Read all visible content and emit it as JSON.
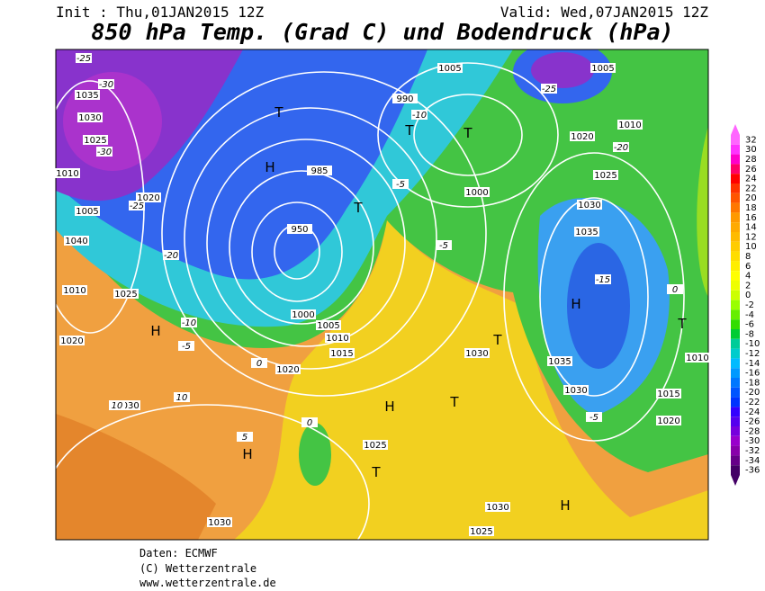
{
  "header": {
    "init": "Init : Thu,01JAN2015 12Z",
    "valid": "Valid: Wed,07JAN2015 12Z",
    "title": "850 hPa Temp. (Grad C) und Bodendruck (hPa)"
  },
  "colorbar": {
    "values": [
      32,
      30,
      28,
      26,
      24,
      22,
      20,
      18,
      16,
      14,
      12,
      10,
      8,
      6,
      4,
      2,
      0,
      -2,
      -4,
      -6,
      -8,
      -10,
      -12,
      -14,
      -16,
      -18,
      -20,
      -22,
      -24,
      -26,
      -28,
      -30,
      -32,
      -34,
      -36
    ],
    "colors": [
      "#ff66ff",
      "#ff33ff",
      "#ff00cc",
      "#ff0066",
      "#ff0000",
      "#ff3300",
      "#ff5500",
      "#ff7700",
      "#ff9900",
      "#ffaa00",
      "#ffbb00",
      "#ffcc00",
      "#ffdd00",
      "#ffee00",
      "#ffff00",
      "#eeff00",
      "#ccff00",
      "#99ff00",
      "#66ee00",
      "#33dd00",
      "#00cc33",
      "#00cc99",
      "#00cccc",
      "#00bbff",
      "#0099ff",
      "#0077ff",
      "#0055ff",
      "#0033ff",
      "#3300ff",
      "#5500ee",
      "#7700dd",
      "#9900cc",
      "#8800aa",
      "#660088",
      "#440066"
    ]
  },
  "map": {
    "pressure_labels": [
      "1035",
      "1030",
      "1025",
      "1010",
      "1005",
      "1020",
      "1040",
      "1010",
      "1025",
      "1020",
      "1030",
      "1030",
      "1025",
      "1030",
      "1025",
      "1020",
      "1015",
      "1010",
      "1005",
      "1000",
      "950",
      "985",
      "990",
      "1000",
      "1005",
      "1005",
      "1010",
      "1020",
      "1025",
      "1030",
      "1035",
      "1035",
      "1030",
      "1015",
      "1020",
      "1010",
      "1030"
    ],
    "temperature_labels": [
      "-25",
      "-30",
      "-30",
      "-25",
      "-20",
      "-10",
      "-5",
      "0",
      "10",
      "10",
      "5",
      "0",
      "-5",
      "-15",
      "-20",
      "-25",
      "0",
      "-10",
      "-5",
      "-5"
    ],
    "centers": [
      "H",
      "H",
      "H",
      "H",
      "H",
      "H",
      "T",
      "T",
      "T",
      "T",
      "T",
      "T",
      "T",
      "T"
    ]
  },
  "footer": {
    "source": "Daten: ECMWF",
    "copyright": "(C) Wetterzentrale",
    "url": "www.wetterzentrale.de"
  }
}
